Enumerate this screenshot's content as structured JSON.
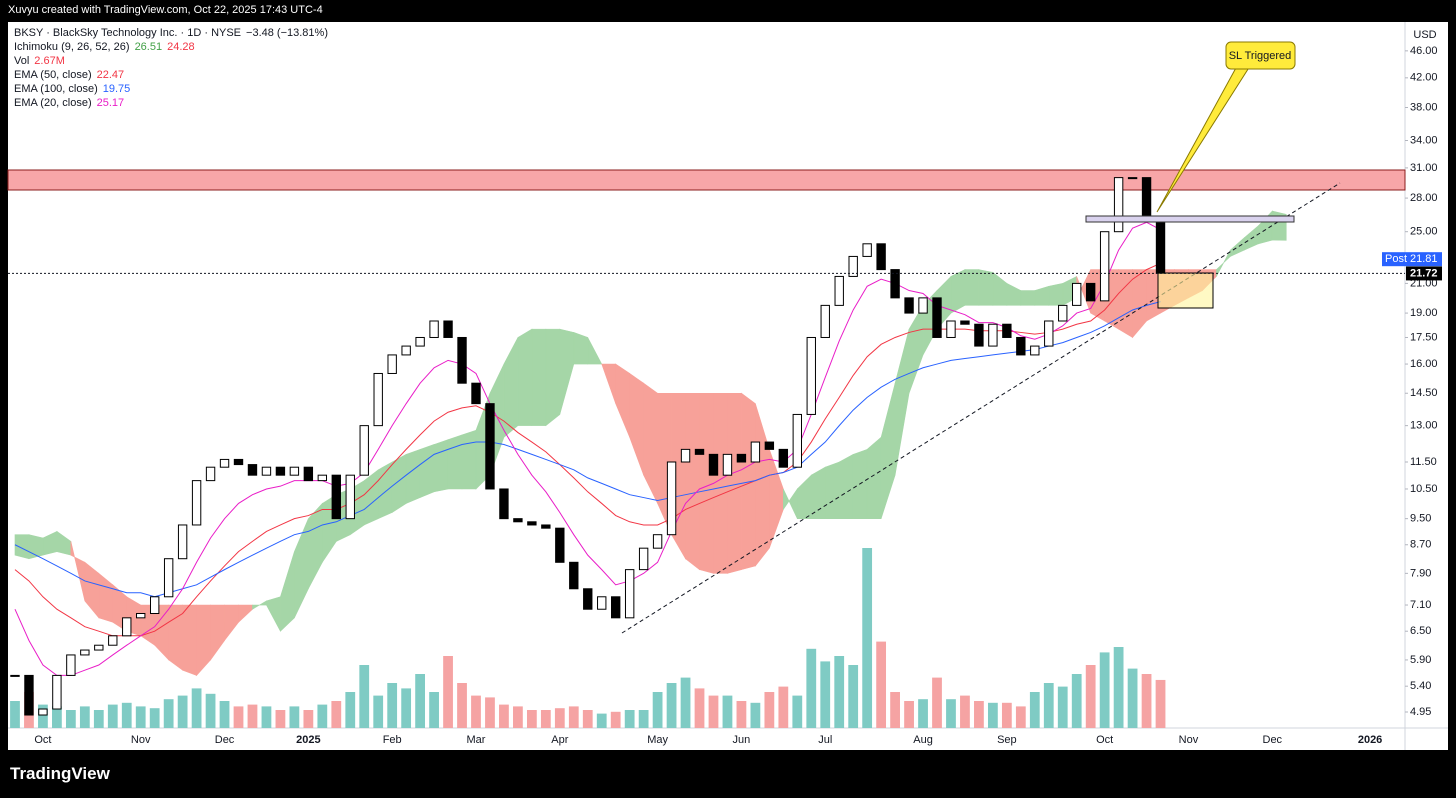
{
  "header": "Xuvyu created with TradingView.com, Oct 22, 2025 17:43 UTC-4",
  "footer": "TradingView",
  "chart_data": {
    "type": "candlestick",
    "title": "BKSY · BlackSky Technology Inc. · 1D · NYSE",
    "change": "−3.48 (−13.81%)",
    "currency": "USD",
    "categories": [
      null,
      null,
      "Oct",
      null,
      null,
      null,
      null,
      null,
      null,
      "Nov",
      null,
      null,
      null,
      null,
      null,
      "Dec",
      null,
      null,
      null,
      null,
      null,
      "2025",
      null,
      null,
      null,
      null,
      null,
      "Feb",
      null,
      null,
      null,
      null,
      null,
      "Mar",
      null,
      null,
      null,
      null,
      null,
      "Apr",
      null,
      null,
      null,
      null,
      null,
      null,
      "May",
      null,
      null,
      null,
      null,
      null,
      "Jun",
      null,
      null,
      null,
      null,
      null,
      "Jul",
      null,
      null,
      null,
      null,
      null,
      null,
      "Aug",
      null,
      null,
      null,
      null,
      null,
      "Sep",
      null,
      null,
      null,
      null,
      null,
      null,
      "Oct",
      null,
      null,
      null,
      null,
      null,
      "Nov",
      null,
      null,
      null,
      null,
      null,
      "Dec",
      null,
      null,
      null,
      null,
      null,
      null,
      "2026",
      null,
      null
    ],
    "close": [
      5.6,
      4.9,
      5.0,
      5.6,
      6.0,
      6.1,
      6.2,
      6.4,
      6.8,
      6.9,
      7.3,
      8.3,
      9.3,
      10.8,
      11.3,
      11.6,
      11.4,
      11.0,
      11.3,
      11.0,
      11.3,
      10.8,
      11.0,
      9.5,
      11.0,
      13.0,
      15.5,
      16.5,
      17.0,
      17.5,
      18.5,
      17.5,
      15.0,
      14.0,
      10.5,
      9.5,
      9.4,
      9.3,
      9.2,
      8.2,
      7.5,
      7.0,
      7.3,
      6.8,
      8.0,
      8.6,
      9.0,
      11.5,
      12.0,
      11.8,
      11.0,
      11.8,
      11.5,
      12.3,
      12.0,
      11.3,
      13.5,
      17.5,
      19.5,
      21.5,
      23.0,
      24.0,
      22.0,
      20.0,
      19.0,
      20.0,
      17.5,
      18.5,
      18.3,
      17.0,
      18.3,
      17.5,
      16.5,
      17.0,
      18.5,
      19.5,
      21.0,
      19.8,
      25.0,
      30.0,
      30.0,
      26.0,
      21.72,
      null,
      null,
      null,
      null,
      null,
      null,
      null,
      null,
      null,
      null,
      null,
      null,
      null,
      null,
      null,
      null,
      null
    ],
    "up_color": "#ffffff",
    "down_color": "#000000",
    "volume": {
      "name": "Vol",
      "last_label": "2.67M",
      "up_color": "#7fcbc4",
      "down_color": "#f5a3a3",
      "values": [
        1.5,
        2.0,
        1.3,
        1.2,
        1.0,
        1.2,
        1.0,
        1.3,
        1.4,
        1.2,
        1.1,
        1.6,
        1.8,
        2.2,
        1.9,
        1.5,
        1.2,
        1.3,
        1.2,
        1.0,
        1.2,
        1.0,
        1.3,
        1.5,
        2.0,
        3.5,
        1.8,
        2.5,
        2.2,
        3.0,
        2.0,
        4.0,
        2.5,
        1.8,
        1.7,
        1.3,
        1.2,
        1.0,
        1.0,
        1.1,
        1.2,
        1.0,
        0.8,
        0.9,
        1.0,
        1.0,
        2.0,
        2.5,
        2.8,
        2.2,
        1.8,
        1.8,
        1.5,
        1.4,
        2.0,
        2.3,
        1.8,
        4.4,
        3.7,
        4.0,
        3.5,
        10.0,
        4.8,
        2.0,
        1.5,
        1.6,
        2.8,
        1.6,
        1.8,
        1.5,
        1.4,
        1.4,
        1.2,
        2.0,
        2.5,
        2.3,
        3.0,
        3.5,
        4.2,
        4.5,
        3.3,
        3.0,
        2.67,
        null,
        null,
        null,
        null,
        null,
        null,
        null,
        null,
        null,
        null,
        null,
        null,
        null,
        null,
        null,
        null,
        null
      ]
    },
    "ichimoku": {
      "name": "Ichimoku (9, 26, 52, 26)",
      "up_color": "#a5d6a7",
      "down_color": "#f7a199",
      "span_a": [
        9.0,
        9.0,
        8.9,
        9.1,
        8.8,
        7.2,
        6.8,
        6.7,
        6.5,
        6.4,
        6.2,
        5.9,
        5.7,
        5.6,
        5.9,
        6.3,
        6.7,
        7.0,
        7.2,
        7.3,
        8.5,
        9.5,
        10.0,
        10.3,
        10.5,
        10.8,
        11.2,
        11.5,
        11.8,
        12.0,
        12.2,
        12.4,
        12.6,
        12.8,
        14.5,
        16.0,
        17.5,
        18.0,
        18.0,
        18.0,
        17.8,
        17.5,
        16.0,
        14.0,
        12.5,
        11.0,
        10.0,
        9.0,
        8.3,
        8.0,
        7.9,
        7.9,
        8.0,
        8.1,
        8.6,
        9.8,
        10.5,
        11.0,
        11.3,
        11.5,
        11.8,
        12.0,
        12.5,
        15.0,
        18.0,
        19.5,
        20.5,
        21.5,
        22.0,
        22.0,
        21.8,
        21.0,
        20.5,
        20.5,
        20.8,
        21.0,
        21.5,
        19.0,
        18.5,
        18.0,
        17.5,
        18.5,
        19.0,
        19.5,
        20.0,
        20.5,
        21.5,
        23.5,
        24.5,
        25.5,
        26.8,
        26.51,
        null,
        null,
        null,
        null,
        null,
        null,
        null,
        null
      ],
      "span_b": [
        8.4,
        8.3,
        8.4,
        8.5,
        8.4,
        8.2,
        7.9,
        7.6,
        7.3,
        7.1,
        7.1,
        7.1,
        7.1,
        7.1,
        7.1,
        7.1,
        7.1,
        7.1,
        7.1,
        6.5,
        6.8,
        7.5,
        8.2,
        8.8,
        9.0,
        9.3,
        9.5,
        9.7,
        10.0,
        10.2,
        10.4,
        10.5,
        10.5,
        10.5,
        11.0,
        12.5,
        13.0,
        13.0,
        13.0,
        13.5,
        16.0,
        16.0,
        16.0,
        16.0,
        15.5,
        15.0,
        14.5,
        14.5,
        14.5,
        14.5,
        14.5,
        14.5,
        14.5,
        14.0,
        12.0,
        10.5,
        9.5,
        9.5,
        9.5,
        9.5,
        9.5,
        9.5,
        9.5,
        11.0,
        14.5,
        16.5,
        18.0,
        19.0,
        19.5,
        19.5,
        19.5,
        19.5,
        19.5,
        19.5,
        19.5,
        19.5,
        20.0,
        22.0,
        22.0,
        22.0,
        22.0,
        22.0,
        22.0,
        22.0,
        22.0,
        22.0,
        22.0,
        23.0,
        23.5,
        24.0,
        24.3,
        24.28,
        null,
        null,
        null,
        null,
        null,
        null,
        null,
        null
      ]
    },
    "series": [
      {
        "name": "EMA (50, close)",
        "color": "#f23645",
        "values": [
          8.0,
          7.7,
          7.3,
          7.0,
          6.8,
          6.6,
          6.5,
          6.4,
          6.4,
          6.4,
          6.5,
          6.7,
          6.9,
          7.3,
          7.7,
          8.1,
          8.5,
          8.8,
          9.1,
          9.3,
          9.5,
          9.6,
          9.8,
          9.8,
          10.0,
          10.3,
          10.8,
          11.4,
          12.0,
          12.6,
          13.2,
          13.6,
          13.8,
          13.9,
          13.6,
          13.2,
          12.7,
          12.3,
          11.9,
          11.4,
          10.9,
          10.4,
          10.0,
          9.6,
          9.4,
          9.3,
          9.3,
          9.5,
          9.8,
          10.0,
          10.2,
          10.4,
          10.6,
          10.8,
          11.0,
          11.1,
          11.5,
          12.3,
          13.3,
          14.3,
          15.4,
          16.4,
          17.1,
          17.5,
          17.8,
          18.0,
          18.0,
          18.0,
          18.0,
          17.9,
          17.9,
          17.9,
          17.8,
          17.7,
          17.8,
          18.0,
          18.3,
          18.5,
          19.2,
          20.3,
          21.3,
          22.0,
          22.47,
          null,
          null,
          null,
          null,
          null,
          null,
          null,
          null,
          null,
          null,
          null,
          null,
          null,
          null,
          null,
          null,
          null
        ]
      },
      {
        "name": "EMA (100, close)",
        "color": "#2962ff",
        "values": [
          8.7,
          8.5,
          8.3,
          8.1,
          7.9,
          7.7,
          7.6,
          7.5,
          7.4,
          7.4,
          7.3,
          7.4,
          7.5,
          7.6,
          7.8,
          8.0,
          8.2,
          8.4,
          8.6,
          8.8,
          9.0,
          9.1,
          9.3,
          9.4,
          9.6,
          9.8,
          10.2,
          10.6,
          11.0,
          11.4,
          11.8,
          12.0,
          12.2,
          12.3,
          12.3,
          12.2,
          12.0,
          11.8,
          11.6,
          11.4,
          11.2,
          10.9,
          10.7,
          10.5,
          10.3,
          10.2,
          10.1,
          10.2,
          10.3,
          10.4,
          10.5,
          10.6,
          10.7,
          10.8,
          11.0,
          11.1,
          11.3,
          11.8,
          12.3,
          13.0,
          13.7,
          14.3,
          14.8,
          15.2,
          15.5,
          15.8,
          16.0,
          16.2,
          16.3,
          16.4,
          16.5,
          16.6,
          16.7,
          16.8,
          17.0,
          17.2,
          17.5,
          17.8,
          18.2,
          18.7,
          19.2,
          19.5,
          19.75,
          null,
          null,
          null,
          null,
          null,
          null,
          null,
          null,
          null,
          null,
          null,
          null,
          null,
          null,
          null,
          null,
          null
        ]
      },
      {
        "name": "EMA (20, close)",
        "color": "#e91ec8",
        "values": [
          7.0,
          6.3,
          5.8,
          5.6,
          5.6,
          5.7,
          5.8,
          6.0,
          6.2,
          6.4,
          6.6,
          7.0,
          7.5,
          8.2,
          8.9,
          9.5,
          10.0,
          10.3,
          10.5,
          10.6,
          10.8,
          10.8,
          10.8,
          10.6,
          10.7,
          11.1,
          12.0,
          13.0,
          14.0,
          15.0,
          15.8,
          16.2,
          16.0,
          15.5,
          14.0,
          12.8,
          11.8,
          11.0,
          10.4,
          9.7,
          9.0,
          8.4,
          8.0,
          7.6,
          7.7,
          7.9,
          8.2,
          9.1,
          10.0,
          10.5,
          10.7,
          11.0,
          11.2,
          11.5,
          11.6,
          11.5,
          12.0,
          13.5,
          15.3,
          17.3,
          19.2,
          20.8,
          21.3,
          21.0,
          20.5,
          20.3,
          19.5,
          19.2,
          18.9,
          18.4,
          18.4,
          18.1,
          17.6,
          17.4,
          17.7,
          18.2,
          19.0,
          19.3,
          21.0,
          23.5,
          25.3,
          25.8,
          25.17,
          null,
          null,
          null,
          null,
          null,
          null,
          null,
          null,
          null,
          null,
          null,
          null,
          null,
          null,
          null,
          null,
          null
        ]
      }
    ],
    "post_label": "Post",
    "post_price": 21.81,
    "annotations": [
      "SL Triggered"
    ],
    "log_scale": true,
    "ylim": [
      4.69,
      50.7
    ],
    "yticks": [
      4.95,
      {
        "value": 5.4,
        "label": "5.40"
      },
      {
        "value": 5.9,
        "label": "5.90"
      },
      {
        "value": 6.5,
        "label": "6.50"
      },
      {
        "value": 7.1,
        "label": "7.10"
      },
      {
        "value": 7.9,
        "label": "7.90"
      },
      {
        "value": 8.7,
        "label": "8.70"
      },
      {
        "value": 9.5,
        "label": "9.50"
      },
      {
        "value": 10.5,
        "label": "10.50"
      },
      {
        "value": 11.5,
        "label": "11.50"
      },
      {
        "value": 13,
        "label": "13.00"
      },
      {
        "value": 14.5,
        "label": "14.50"
      },
      {
        "value": 16,
        "label": "16.00"
      },
      {
        "value": 17.5,
        "label": "17.50"
      },
      {
        "value": 19,
        "label": "19.00"
      },
      {
        "value": 21,
        "label": "21.00"
      },
      {
        "value": 25,
        "label": "25.00"
      },
      {
        "value": 28,
        "label": "28.00"
      },
      {
        "value": 31,
        "label": "31.00"
      },
      {
        "value": 34,
        "label": "34.00"
      },
      {
        "value": 38,
        "label": "38.00"
      },
      {
        "value": 42,
        "label": "42.00"
      },
      {
        "value": 46,
        "label": "46.00"
      }
    ]
  }
}
